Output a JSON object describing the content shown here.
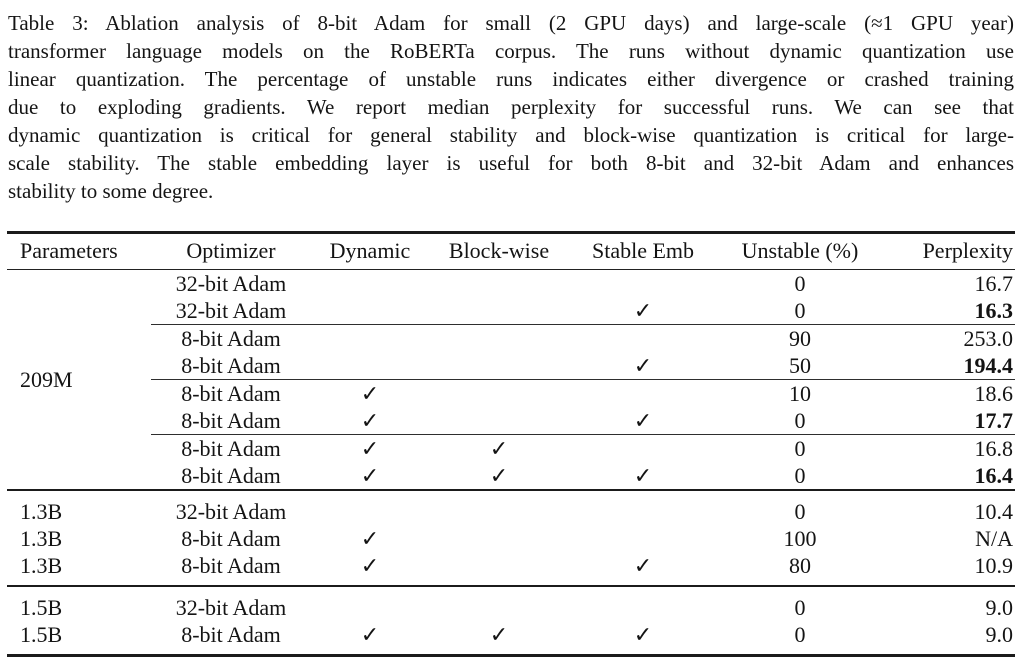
{
  "caption": {
    "lines": [
      "Table 3: Ablation analysis of 8-bit Adam for small (2 GPU days) and large-scale (≈1 GPU year)",
      "transformer language models on the RoBERTa corpus. The runs without dynamic quantization use",
      "linear quantization. The percentage of unstable runs indicates either divergence or crashed training",
      "due to exploding gradients.  We report median perplexity for successful runs.  We can see that",
      "dynamic quantization is critical for general stability and block-wise quantization is critical for large-",
      "scale stability.  The stable embedding layer is useful for both 8-bit and 32-bit Adam and enhances",
      "stability to some degree."
    ]
  },
  "table": {
    "checkmark": "✓",
    "columns": [
      {
        "key": "parameters",
        "label": "Parameters"
      },
      {
        "key": "optimizer",
        "label": "Optimizer"
      },
      {
        "key": "dynamic",
        "label": "Dynamic"
      },
      {
        "key": "blockwise",
        "label": "Block-wise"
      },
      {
        "key": "stable_emb",
        "label": "Stable Emb"
      },
      {
        "key": "unstable",
        "label": "Unstable (%)"
      },
      {
        "key": "perplexity",
        "label": "Perplexity"
      }
    ],
    "groups": [
      {
        "parameters": "209M",
        "rowspan": true,
        "heavy_top": false,
        "rows": [
          {
            "optimizer": "32-bit Adam",
            "dynamic": false,
            "blockwise": false,
            "stable_emb": false,
            "unstable": "0",
            "perplexity": "16.7",
            "bold": false,
            "rule_after": false
          },
          {
            "optimizer": "32-bit Adam",
            "dynamic": false,
            "blockwise": false,
            "stable_emb": true,
            "unstable": "0",
            "perplexity": "16.3",
            "bold": true,
            "rule_after": true
          },
          {
            "optimizer": "8-bit Adam",
            "dynamic": false,
            "blockwise": false,
            "stable_emb": false,
            "unstable": "90",
            "perplexity": "253.0",
            "bold": false,
            "rule_after": false
          },
          {
            "optimizer": "8-bit Adam",
            "dynamic": false,
            "blockwise": false,
            "stable_emb": true,
            "unstable": "50",
            "perplexity": "194.4",
            "bold": true,
            "rule_after": true
          },
          {
            "optimizer": "8-bit Adam",
            "dynamic": true,
            "blockwise": false,
            "stable_emb": false,
            "unstable": "10",
            "perplexity": "18.6",
            "bold": false,
            "rule_after": false
          },
          {
            "optimizer": "8-bit Adam",
            "dynamic": true,
            "blockwise": false,
            "stable_emb": true,
            "unstable": "0",
            "perplexity": "17.7",
            "bold": true,
            "rule_after": true
          },
          {
            "optimizer": "8-bit Adam",
            "dynamic": true,
            "blockwise": true,
            "stable_emb": false,
            "unstable": "0",
            "perplexity": "16.8",
            "bold": false,
            "rule_after": false
          },
          {
            "optimizer": "8-bit Adam",
            "dynamic": true,
            "blockwise": true,
            "stable_emb": true,
            "unstable": "0",
            "perplexity": "16.4",
            "bold": true,
            "rule_after": false
          }
        ]
      },
      {
        "rowspan": false,
        "heavy_top": true,
        "rows": [
          {
            "parameters": "1.3B",
            "optimizer": "32-bit Adam",
            "dynamic": false,
            "blockwise": false,
            "stable_emb": false,
            "unstable": "0",
            "perplexity": "10.4",
            "bold": false,
            "rule_after": false
          },
          {
            "parameters": "1.3B",
            "optimizer": "8-bit Adam",
            "dynamic": true,
            "blockwise": false,
            "stable_emb": false,
            "unstable": "100",
            "perplexity": "N/A",
            "bold": false,
            "rule_after": false
          },
          {
            "parameters": "1.3B",
            "optimizer": "8-bit Adam",
            "dynamic": true,
            "blockwise": false,
            "stable_emb": true,
            "unstable": "80",
            "perplexity": "10.9",
            "bold": false,
            "rule_after": false
          }
        ]
      },
      {
        "rowspan": false,
        "heavy_top": true,
        "rows": [
          {
            "parameters": "1.5B",
            "optimizer": "32-bit Adam",
            "dynamic": false,
            "blockwise": false,
            "stable_emb": false,
            "unstable": "0",
            "perplexity": "9.0",
            "bold": false,
            "rule_after": false
          },
          {
            "parameters": "1.5B",
            "optimizer": "8-bit Adam",
            "dynamic": true,
            "blockwise": true,
            "stable_emb": true,
            "unstable": "0",
            "perplexity": "9.0",
            "bold": false,
            "rule_after": false
          }
        ]
      }
    ]
  }
}
